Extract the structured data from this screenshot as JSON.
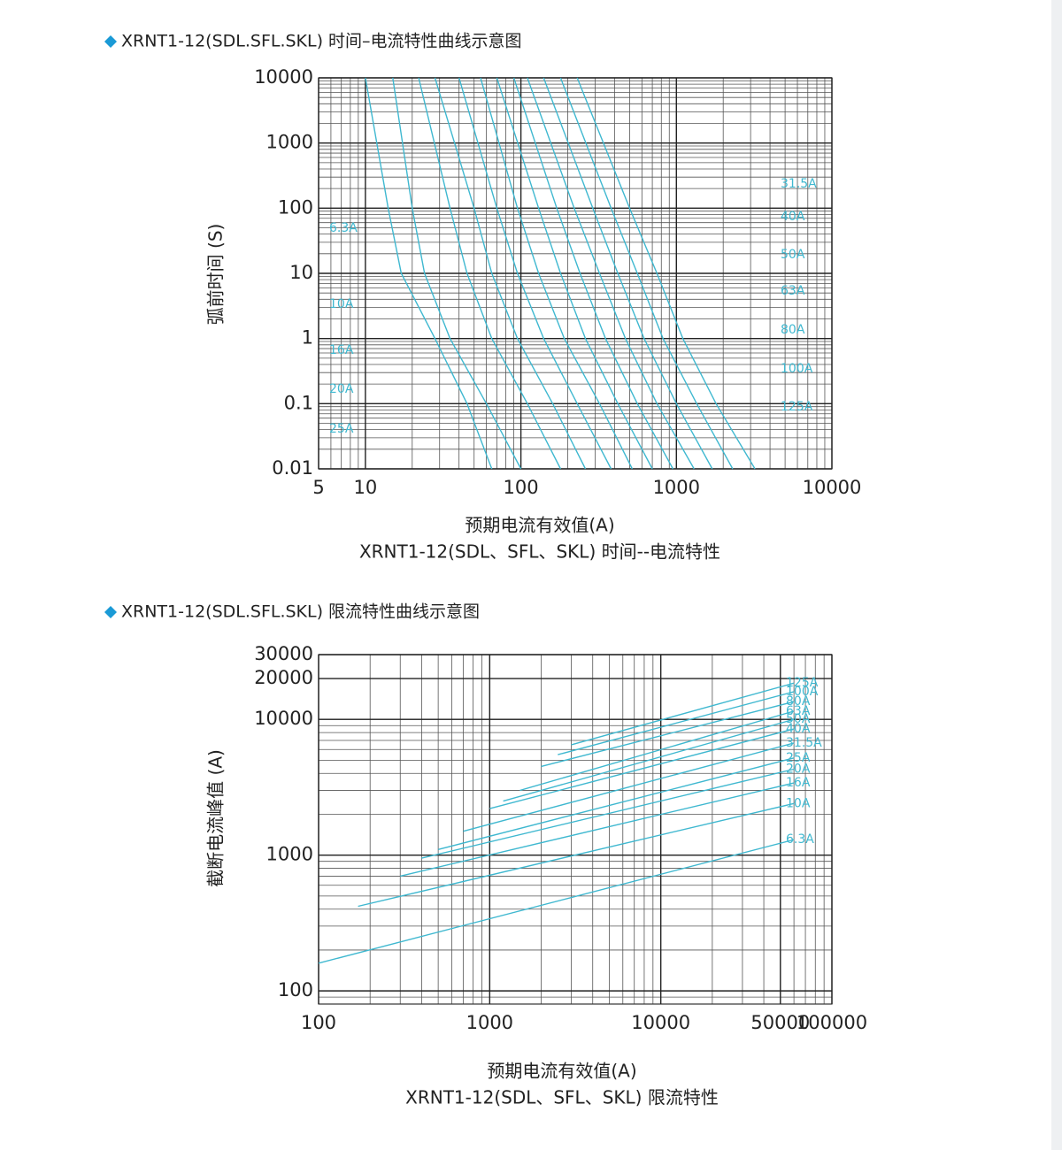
{
  "chart_data": [
    {
      "type": "line",
      "title": "XRNT1-12(SDL.SFL.SKL) 时间–电流特性曲线示意图",
      "y_label": "弧前时间 (S)",
      "x_label": "预期电流有效值(A)",
      "caption": "XRNT1-12(SDL、SFL、SKL) 时间--电流特性",
      "log_x": true,
      "log_y": true,
      "grid": true,
      "xlim": [
        5,
        10000
      ],
      "ylim": [
        0.01,
        10000
      ],
      "xticks": [
        5,
        10,
        100,
        1000,
        10000
      ],
      "yticks": [
        0.01,
        0.1,
        1,
        10,
        100,
        1000,
        10000
      ],
      "series": [
        {
          "name": "6.3A",
          "color": "#3fb8d0",
          "x": [
            10,
            14,
            17,
            28,
            45,
            65
          ],
          "values": [
            10000,
            100,
            10,
            1,
            0.1,
            0.01
          ]
        },
        {
          "name": "10A",
          "color": "#3fb8d0",
          "x": [
            15,
            20,
            24,
            35,
            60,
            100
          ],
          "values": [
            10000,
            100,
            10,
            1,
            0.1,
            0.01
          ]
        },
        {
          "name": "16A",
          "color": "#3fb8d0",
          "x": [
            22,
            35,
            45,
            65,
            110,
            180
          ],
          "values": [
            10000,
            100,
            10,
            1,
            0.1,
            0.01
          ]
        },
        {
          "name": "20A",
          "color": "#3fb8d0",
          "x": [
            28,
            50,
            65,
            95,
            160,
            260
          ],
          "values": [
            10000,
            100,
            10,
            1,
            0.1,
            0.01
          ]
        },
        {
          "name": "25A",
          "color": "#3fb8d0",
          "x": [
            40,
            70,
            95,
            140,
            230,
            380
          ],
          "values": [
            10000,
            100,
            10,
            1,
            0.1,
            0.01
          ]
        },
        {
          "name": "31.5A",
          "color": "#3fb8d0",
          "x": [
            55,
            95,
            130,
            190,
            320,
            520
          ],
          "values": [
            10000,
            100,
            10,
            1,
            0.1,
            0.01
          ]
        },
        {
          "name": "40A",
          "color": "#3fb8d0",
          "x": [
            70,
            130,
            180,
            260,
            420,
            700
          ],
          "values": [
            10000,
            100,
            10,
            1,
            0.1,
            0.01
          ]
        },
        {
          "name": "50A",
          "color": "#3fb8d0",
          "x": [
            90,
            170,
            240,
            350,
            560,
            950
          ],
          "values": [
            10000,
            100,
            10,
            1,
            0.1,
            0.01
          ]
        },
        {
          "name": "63A",
          "color": "#3fb8d0",
          "x": [
            110,
            220,
            320,
            470,
            750,
            1300
          ],
          "values": [
            10000,
            100,
            10,
            1,
            0.1,
            0.01
          ]
        },
        {
          "name": "80A",
          "color": "#3fb8d0",
          "x": [
            140,
            290,
            420,
            620,
            1000,
            1700
          ],
          "values": [
            10000,
            100,
            10,
            1,
            0.1,
            0.01
          ]
        },
        {
          "name": "100A",
          "color": "#3fb8d0",
          "x": [
            180,
            380,
            560,
            820,
            1350,
            2300
          ],
          "values": [
            10000,
            100,
            10,
            1,
            0.1,
            0.01
          ]
        },
        {
          "name": "125A",
          "color": "#3fb8d0",
          "x": [
            230,
            500,
            750,
            1100,
            1800,
            3200
          ],
          "values": [
            10000,
            100,
            10,
            1,
            0.1,
            0.01
          ]
        }
      ]
    },
    {
      "type": "line",
      "title": "XRNT1-12(SDL.SFL.SKL) 限流特性曲线示意图",
      "y_label": "截断电流峰值 (A)",
      "x_label": "预期电流有效值(A)",
      "caption": "XRNT1-12(SDL、SFL、SKL) 限流特性",
      "log_x": true,
      "log_y": true,
      "grid": true,
      "xlim": [
        100,
        100000
      ],
      "ylim": [
        80,
        30000
      ],
      "xticks": [
        100,
        1000,
        10000,
        50000,
        100000
      ],
      "yticks": [
        100,
        1000,
        10000,
        20000,
        30000
      ],
      "series": [
        {
          "name": "6.3A",
          "color": "#3fb8d0",
          "x": [
            100,
            60000
          ],
          "values": [
            160,
            1300
          ]
        },
        {
          "name": "10A",
          "color": "#3fb8d0",
          "x": [
            170,
            60000
          ],
          "values": [
            420,
            2400
          ]
        },
        {
          "name": "16A",
          "color": "#3fb8d0",
          "x": [
            300,
            60000
          ],
          "values": [
            700,
            3400
          ]
        },
        {
          "name": "20A",
          "color": "#3fb8d0",
          "x": [
            400,
            60000
          ],
          "values": [
            950,
            4300
          ]
        },
        {
          "name": "25A",
          "color": "#3fb8d0",
          "x": [
            500,
            60000
          ],
          "values": [
            1100,
            5200
          ]
        },
        {
          "name": "31.5A",
          "color": "#3fb8d0",
          "x": [
            700,
            60000
          ],
          "values": [
            1500,
            6700
          ]
        },
        {
          "name": "40A",
          "color": "#3fb8d0",
          "x": [
            1000,
            60000
          ],
          "values": [
            2200,
            8500
          ]
        },
        {
          "name": "50A",
          "color": "#3fb8d0",
          "x": [
            1200,
            60000
          ],
          "values": [
            2500,
            10000
          ]
        },
        {
          "name": "63A",
          "color": "#3fb8d0",
          "x": [
            1500,
            60000
          ],
          "values": [
            3000,
            11500
          ]
        },
        {
          "name": "80A",
          "color": "#3fb8d0",
          "x": [
            2000,
            60000
          ],
          "values": [
            4500,
            13500
          ]
        },
        {
          "name": "100A",
          "color": "#3fb8d0",
          "x": [
            2500,
            60000
          ],
          "values": [
            5500,
            16000
          ]
        },
        {
          "name": "125A",
          "color": "#3fb8d0",
          "x": [
            3000,
            60000
          ],
          "values": [
            6500,
            18500
          ]
        }
      ]
    }
  ]
}
